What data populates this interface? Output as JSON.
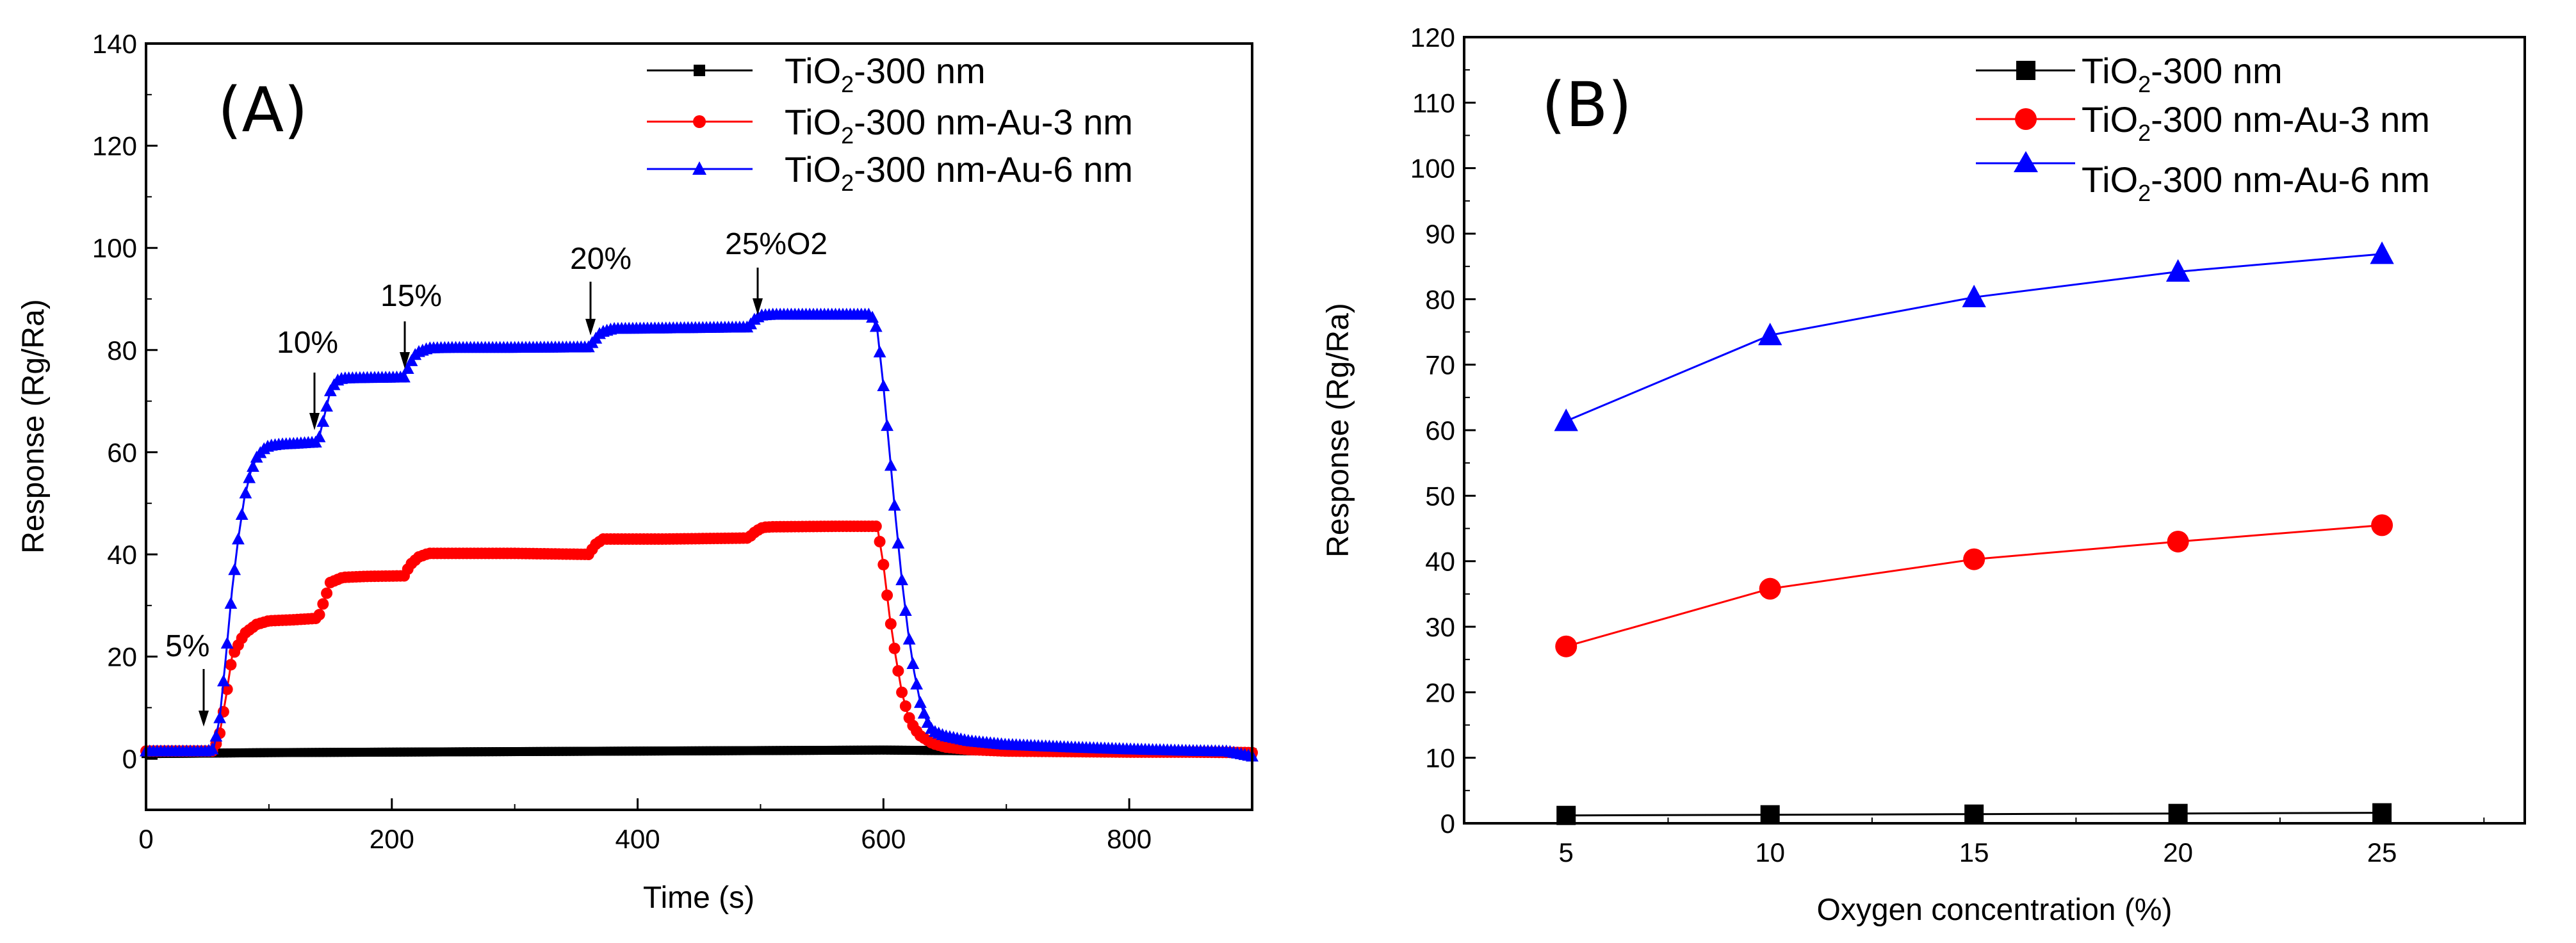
{
  "chart_data": [
    {
      "panel_label": "(A)",
      "type": "line",
      "xlabel": "Time (s)",
      "ylabel": "Response (Rg/Ra)",
      "xlim": [
        0,
        900
      ],
      "ylim": [
        -10,
        140
      ],
      "xticks": [
        "0",
        "200",
        "400",
        "600",
        "800"
      ],
      "yticks": [
        "0",
        "20",
        "40",
        "60",
        "80",
        "100",
        "120",
        "140"
      ],
      "legend": {
        "placement": "top-right",
        "entries": [
          {
            "pre": "TiO",
            "sub": "2",
            "post": "-300 nm"
          },
          {
            "pre": "TiO",
            "sub": "2",
            "post": "-300 nm-Au-3 nm"
          },
          {
            "pre": "TiO",
            "sub": "2",
            "post": "-300 nm-Au-6 nm"
          }
        ]
      },
      "annotations": [
        {
          "text": "5%",
          "x": 50,
          "y": 1
        },
        {
          "text": "10%",
          "x": 138,
          "y": 62
        },
        {
          "text": "15%",
          "x": 212,
          "y": 75
        },
        {
          "text": "20%",
          "x": 362,
          "y": 81
        },
        {
          "text": "25%O2",
          "x": 497,
          "y": 85
        }
      ],
      "series": [
        {
          "name": "TiO2-300 nm",
          "color": "#000000",
          "marker": "square",
          "x": [
            0,
            100,
            200,
            300,
            400,
            500,
            600,
            700,
            800,
            900
          ],
          "y": [
            1,
            1.2,
            1.3,
            1.4,
            1.5,
            1.6,
            1.7,
            1.5,
            1.3,
            1.2
          ]
        },
        {
          "name": "TiO2-300 nm-Au-3 nm",
          "color": "#ff0000",
          "marker": "circle",
          "x": [
            0,
            55,
            60,
            65,
            70,
            80,
            90,
            100,
            120,
            140,
            145,
            150,
            160,
            180,
            210,
            215,
            222,
            230,
            250,
            300,
            360,
            366,
            372,
            380,
            420,
            490,
            496,
            502,
            510,
            560,
            595,
            600,
            605,
            610,
            615,
            620,
            625,
            630,
            640,
            650,
            670,
            700,
            750,
            800,
            850,
            900
          ],
          "y": [
            1.5,
            1.5,
            5,
            12,
            20,
            24.5,
            26.3,
            27,
            27.2,
            27.5,
            31,
            34.5,
            35.5,
            35.7,
            35.8,
            38,
            39.5,
            40.2,
            40.2,
            40.2,
            40,
            42,
            43,
            43,
            43,
            43.2,
            44.5,
            45.3,
            45.4,
            45.5,
            45.5,
            38,
            28,
            20,
            13,
            8.5,
            6,
            4.5,
            3,
            2.3,
            1.8,
            1.5,
            1.4,
            1.3,
            1.3,
            1.2
          ]
        },
        {
          "name": "TiO2-300 nm-Au-6 nm",
          "color": "#0000ff",
          "marker": "triangle",
          "x": [
            0,
            50,
            55,
            60,
            65,
            70,
            75,
            80,
            85,
            90,
            95,
            100,
            110,
            120,
            140,
            145,
            150,
            155,
            160,
            180,
            210,
            215,
            220,
            230,
            250,
            300,
            360,
            365,
            370,
            380,
            420,
            490,
            495,
            500,
            510,
            560,
            590,
            595,
            600,
            605,
            610,
            615,
            620,
            625,
            630,
            635,
            640,
            650,
            670,
            700,
            750,
            800,
            850,
            880,
            900
          ],
          "y": [
            1.5,
            1.5,
            2,
            8,
            20,
            33,
            43,
            51,
            56,
            59,
            60.5,
            61.3,
            61.6,
            61.7,
            62,
            67,
            72,
            74,
            74.5,
            74.6,
            74.7,
            77.5,
            79.5,
            80.4,
            80.5,
            80.5,
            80.6,
            82,
            83.5,
            84.2,
            84.3,
            84.5,
            86,
            86.8,
            87,
            87,
            87,
            84,
            73,
            60,
            47,
            35,
            25,
            17,
            11,
            7.5,
            5.5,
            4.5,
            3.5,
            2.8,
            2.3,
            1.9,
            1.6,
            1.5,
            0.5
          ]
        }
      ]
    },
    {
      "panel_label": "(B)",
      "type": "line",
      "xlabel": "Oxygen concentration (%)",
      "ylabel": "Response (Rg/Ra)",
      "xlim": [
        2.5,
        28.5
      ],
      "ylim": [
        0,
        120
      ],
      "xticks": [
        "5",
        "10",
        "15",
        "20",
        "25"
      ],
      "yticks": [
        "0",
        "10",
        "20",
        "30",
        "40",
        "50",
        "60",
        "70",
        "80",
        "90",
        "100",
        "110",
        "120"
      ],
      "legend": {
        "placement": "top-right",
        "entries": [
          {
            "pre": "TiO",
            "sub": "2",
            "post": "-300 nm"
          },
          {
            "pre": "TiO",
            "sub": "2",
            "post": "-300 nm-Au-3 nm"
          },
          {
            "pre": "TiO",
            "sub": "2",
            "post": "-300 nm-Au-6 nm"
          }
        ]
      },
      "series": [
        {
          "name": "TiO2-300 nm",
          "color": "#000000",
          "marker": "square",
          "x": [
            5,
            10,
            15,
            20,
            25
          ],
          "y": [
            1.2,
            1.3,
            1.4,
            1.5,
            1.6
          ]
        },
        {
          "name": "TiO2-300 nm-Au-3 nm",
          "color": "#ff0000",
          "marker": "circle",
          "x": [
            5,
            10,
            15,
            20,
            25
          ],
          "y": [
            27,
            35.8,
            40.3,
            43,
            45.5
          ]
        },
        {
          "name": "TiO2-300 nm-Au-6 nm",
          "color": "#0000ff",
          "marker": "triangle",
          "x": [
            5,
            10,
            15,
            20,
            25
          ],
          "y": [
            61.4,
            74.5,
            80.3,
            84.2,
            86.9
          ]
        }
      ]
    }
  ]
}
